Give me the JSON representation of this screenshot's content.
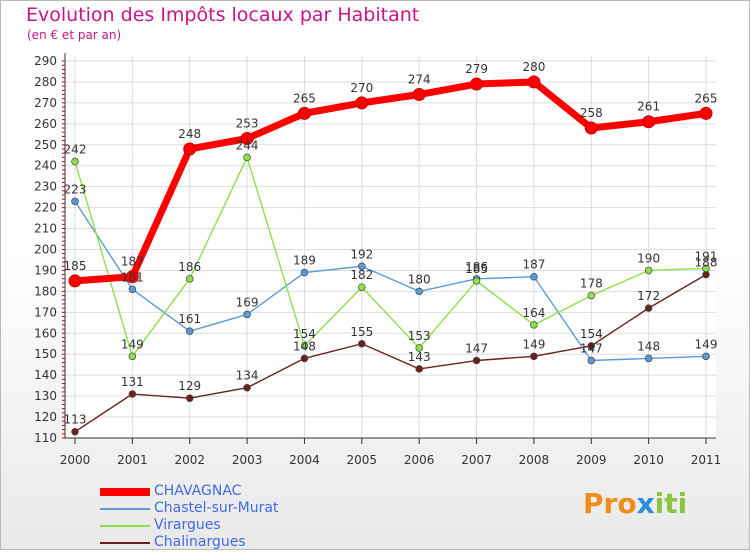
{
  "chart_data": {
    "type": "line",
    "title": "Evolution des Impôts locaux par Habitant",
    "subtitle": "(en € et par an)",
    "xlabel": "",
    "ylabel": "",
    "ylim": [
      110,
      290
    ],
    "yticks": [
      110,
      120,
      130,
      140,
      150,
      160,
      170,
      180,
      190,
      200,
      210,
      220,
      230,
      240,
      250,
      260,
      270,
      280,
      290
    ],
    "x": [
      "2000",
      "2001",
      "2002",
      "2003",
      "2004",
      "2005",
      "2006",
      "2007",
      "2008",
      "2009",
      "2010",
      "2011"
    ],
    "grid": true,
    "series": [
      {
        "name": "CHAVAGNAC",
        "color": "#ff0000",
        "values": [
          185,
          187,
          248,
          253,
          265,
          270,
          274,
          279,
          280,
          258,
          261,
          265
        ]
      },
      {
        "name": "Chastel-sur-Murat",
        "color": "#5b9bd5",
        "values": [
          223,
          181,
          161,
          169,
          189,
          192,
          180,
          186,
          187,
          147,
          148,
          149
        ]
      },
      {
        "name": "Virargues",
        "color": "#8ee04a",
        "values": [
          242,
          149,
          186,
          244,
          154,
          182,
          153,
          185,
          164,
          178,
          190,
          191
        ]
      },
      {
        "name": "Chalinargues",
        "color": "#6b1f1f",
        "values": [
          113,
          131,
          129,
          134,
          148,
          155,
          143,
          147,
          149,
          154,
          172,
          188
        ]
      }
    ]
  },
  "brand": {
    "p1": "Pro",
    "p2": "x",
    "p3": "iti"
  }
}
